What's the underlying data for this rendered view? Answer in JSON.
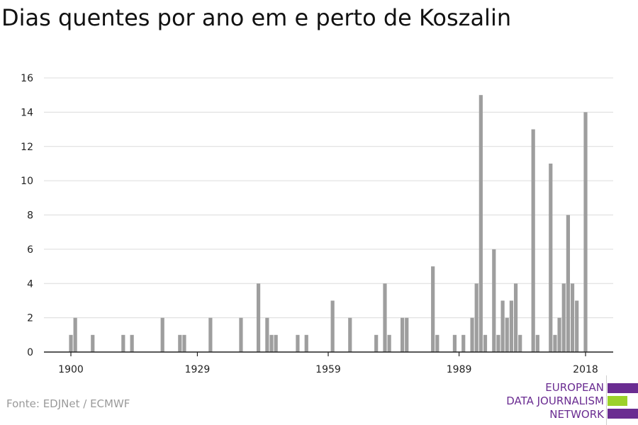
{
  "title": "Dias quentes por ano em e perto de Koszalin",
  "source": "Fonte: EDJNet / ECMWF",
  "logo": {
    "line1": "EUROPEAN",
    "line2": "DATA JOURNALISM",
    "line3": "NETWORK",
    "purple": "#6a2c91",
    "green": "#9bd12a"
  },
  "chart_data": {
    "type": "bar",
    "title": "Dias quentes por ano em e perto de Koszalin",
    "xlabel": "",
    "ylabel": "",
    "xlim": [
      1894,
      2025
    ],
    "ylim": [
      0,
      16
    ],
    "yticks": [
      0,
      2,
      4,
      6,
      8,
      10,
      12,
      14,
      16
    ],
    "xticks": [
      1900,
      1929,
      1959,
      1989,
      2018
    ],
    "grid": true,
    "bar_color": "#9e9e9e",
    "years": [
      1900,
      1901,
      1905,
      1912,
      1914,
      1921,
      1925,
      1926,
      1932,
      1939,
      1943,
      1945,
      1946,
      1947,
      1952,
      1954,
      1960,
      1964,
      1970,
      1972,
      1973,
      1976,
      1977,
      1983,
      1984,
      1988,
      1990,
      1992,
      1993,
      1994,
      1995,
      1997,
      1998,
      1999,
      2000,
      2001,
      2002,
      2003,
      2004,
      2006,
      2007,
      2010,
      2011,
      2012,
      2013,
      2014,
      2015,
      2016,
      2018
    ],
    "values": [
      1,
      2,
      1,
      1,
      1,
      2,
      1,
      1,
      2,
      2,
      4,
      2,
      1,
      1,
      1,
      1,
      3,
      2,
      1,
      4,
      1,
      2,
      2,
      5,
      1,
      1,
      1,
      2,
      4,
      15,
      1,
      6,
      1,
      3,
      2,
      3,
      4,
      1,
      0,
      13,
      1,
      11,
      1,
      2,
      4,
      8,
      4,
      3,
      14
    ]
  }
}
